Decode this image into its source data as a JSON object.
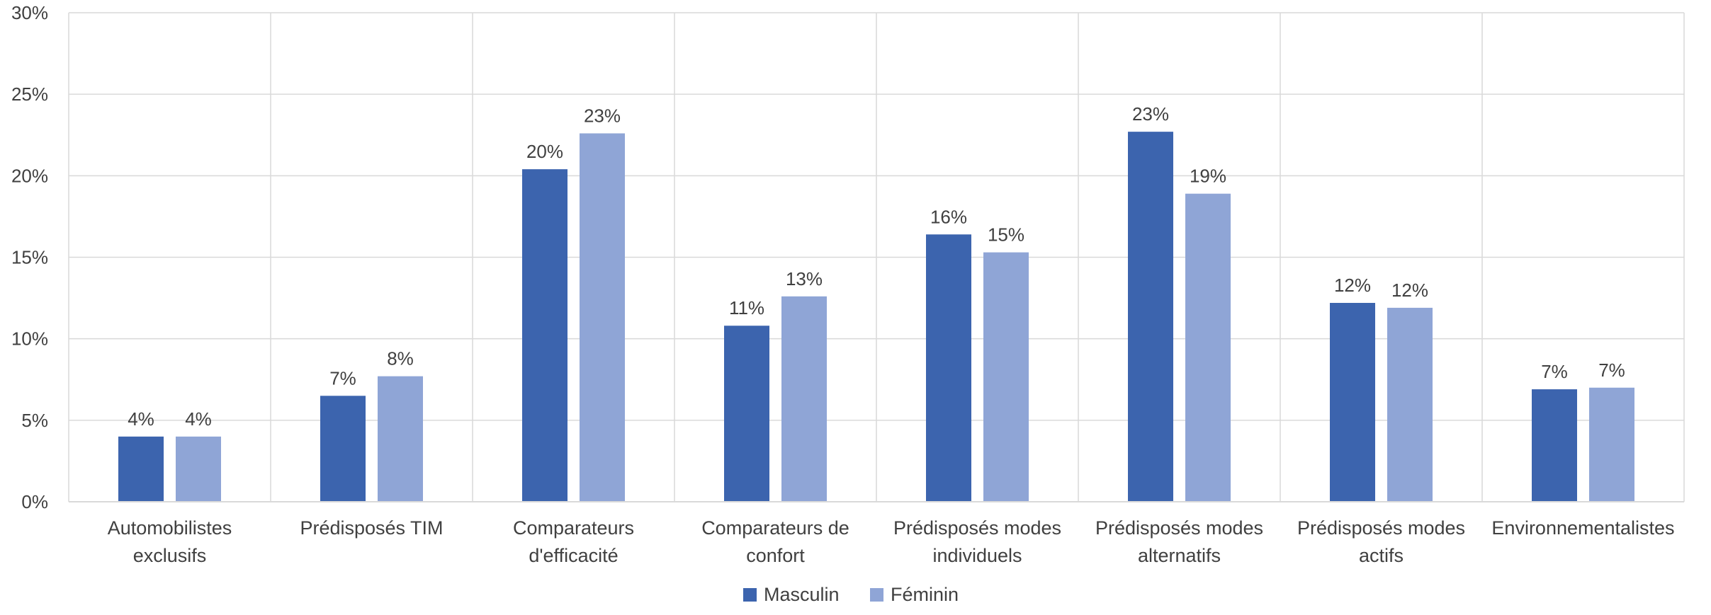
{
  "chart_data": {
    "type": "bar",
    "title": "",
    "xlabel": "",
    "ylabel": "",
    "ylim": [
      0,
      30
    ],
    "yticks": [
      "0%",
      "5%",
      "10%",
      "15%",
      "20%",
      "25%",
      "30%"
    ],
    "grid": true,
    "legend_position": "bottom",
    "categories": [
      [
        "Automobilistes",
        "exclusifs"
      ],
      [
        "Prédisposés TIM"
      ],
      [
        "Comparateurs",
        "d'efficacité"
      ],
      [
        "Comparateurs de",
        "confort"
      ],
      [
        "Prédisposés modes",
        "individuels"
      ],
      [
        "Prédisposés modes",
        "alternatifs"
      ],
      [
        "Prédisposés modes",
        "actifs"
      ],
      [
        "Environnementalistes"
      ]
    ],
    "series": [
      {
        "name": "Masculin",
        "color": "#3C64AE",
        "values": [
          4.0,
          6.5,
          20.4,
          10.8,
          16.4,
          22.7,
          12.2,
          6.9
        ],
        "labels": [
          "4%",
          "7%",
          "20%",
          "11%",
          "16%",
          "23%",
          "12%",
          "7%"
        ]
      },
      {
        "name": "Féminin",
        "color": "#8FA5D6",
        "values": [
          4.0,
          7.7,
          22.6,
          12.6,
          15.3,
          18.9,
          11.9,
          7.0
        ],
        "labels": [
          "4%",
          "8%",
          "23%",
          "13%",
          "15%",
          "19%",
          "12%",
          "7%"
        ]
      }
    ]
  }
}
